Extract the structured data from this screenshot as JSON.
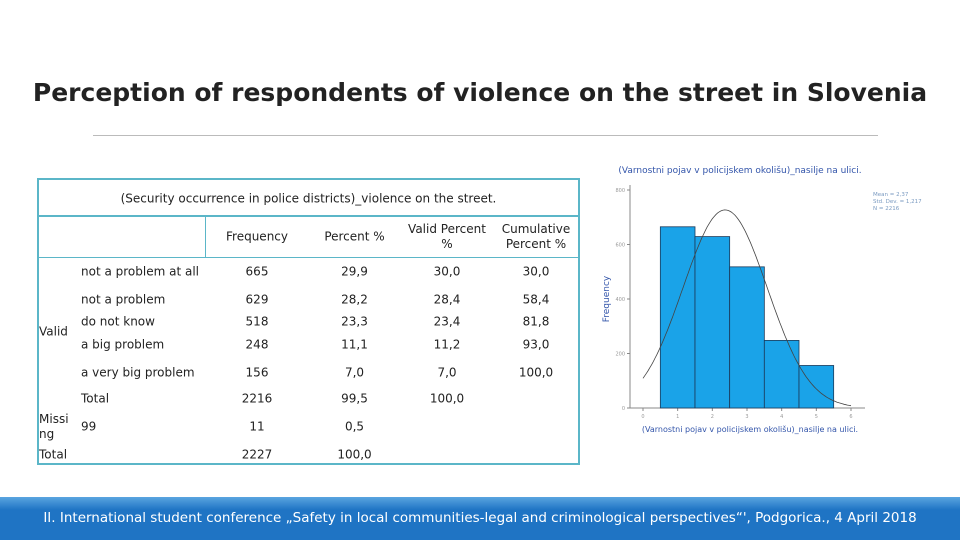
{
  "title": "Perception of respondents of violence on the street in Slovenia",
  "table": {
    "caption": "(Security occurrence in police districts)_violence on the street.",
    "headers": [
      "Frequency",
      "Percent %",
      "Valid Percent %",
      "Cumulative Percent %"
    ],
    "groups": [
      {
        "name": "Valid",
        "rows": [
          {
            "label": "not a problem at all",
            "cells": [
              "665",
              "29,9",
              "30,0",
              "30,0"
            ]
          },
          {
            "label": "not a problem",
            "cells": [
              "629",
              "28,2",
              "28,4",
              "58,4"
            ]
          },
          {
            "label": "do not know",
            "cells": [
              "518",
              "23,3",
              "23,4",
              "81,8"
            ]
          },
          {
            "label": "a big problem",
            "cells": [
              "248",
              "11,1",
              "11,2",
              "93,0"
            ]
          },
          {
            "label": "a very big problem",
            "cells": [
              "156",
              "7,0",
              "7,0",
              "100,0"
            ]
          },
          {
            "label": "Total",
            "cells": [
              "2216",
              "99,5",
              "100,0"
            ]
          }
        ]
      },
      {
        "name": "Missing",
        "rows": [
          {
            "label": "99",
            "cells": [
              "11",
              "0,5"
            ]
          }
        ]
      },
      {
        "name": "Total",
        "rows": [
          {
            "cells": [
              "2227",
              "100,0"
            ]
          }
        ]
      }
    ]
  },
  "chart_data": {
    "type": "histogram",
    "title": "(Varnostni pojav v policijskem okolišu)_nasilje na ulici.",
    "x_label": "(Varnostni pojav v policijskem okolišu)_nasilje na ulici.",
    "y_label": "Frequency",
    "bins": [
      0.5,
      1.5,
      2.5,
      3.5,
      4.5,
      5.5
    ],
    "counts": [
      665,
      629,
      518,
      248,
      156
    ],
    "color": "#1aa3e8",
    "xlim": [
      0,
      6
    ],
    "xticks": [
      0,
      1,
      2,
      3,
      4,
      5,
      6
    ],
    "ylim": [
      0,
      800
    ],
    "yticks": [
      0,
      200,
      400,
      600,
      800
    ],
    "legend": [
      "Mean = 2,37",
      "Std. Dev. = 1,217",
      "N = 2216"
    ],
    "legend_position": "upper right"
  },
  "footer": "II. International student conference „Safety in local communities-legal and criminological perspectives“', Podgorica., 4 April 2018"
}
